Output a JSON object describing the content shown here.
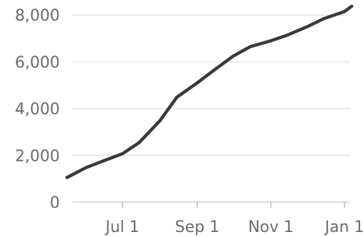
{
  "chart_data": {
    "type": "line",
    "title": "",
    "xlabel": "",
    "ylabel": "",
    "ylim": [
      0,
      8400
    ],
    "y_ticks": [
      0,
      2000,
      4000,
      6000,
      8000
    ],
    "y_tick_labels": [
      "0",
      "2,000",
      "4,000",
      "6,000",
      "8,000"
    ],
    "x_ticks": [
      "2023-07-01",
      "2023-09-01",
      "2023-11-01",
      "2024-01-01"
    ],
    "x_tick_labels": [
      "Jul 1",
      "Sep 1",
      "Nov 1",
      "Jan 1"
    ],
    "grid": true,
    "legend": "none",
    "line_color": "#3a3a3a",
    "series": [
      {
        "x": [
          "2023-05-16",
          "2023-06-01",
          "2023-06-15",
          "2023-07-01",
          "2023-07-15",
          "2023-08-01",
          "2023-08-15",
          "2023-09-01",
          "2023-09-15",
          "2023-10-01",
          "2023-10-15",
          "2023-11-01",
          "2023-11-15",
          "2023-12-01",
          "2023-12-15",
          "2024-01-01",
          "2024-01-07"
        ],
        "values": [
          1050,
          1480,
          1760,
          2070,
          2550,
          3480,
          4480,
          5100,
          5650,
          6250,
          6650,
          6900,
          7150,
          7500,
          7850,
          8150,
          8380
        ]
      }
    ]
  }
}
